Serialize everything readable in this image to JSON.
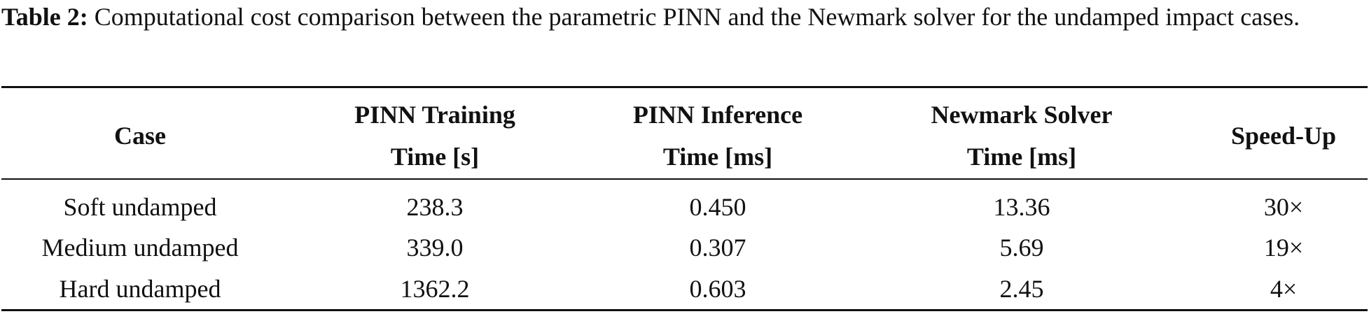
{
  "caption": {
    "label": "Table 2:",
    "text": "Computational cost comparison between the parametric PINN and the Newmark solver for the undamped impact cases."
  },
  "table": {
    "header": [
      [
        "Case"
      ],
      [
        "PINN Training",
        "Time [s]"
      ],
      [
        "PINN Inference",
        "Time [ms]"
      ],
      [
        "Newmark Solver",
        "Time [ms]"
      ],
      [
        "Speed-Up"
      ]
    ],
    "rows": [
      [
        "Soft undamped",
        "238.3",
        "0.450",
        "13.36",
        "30×"
      ],
      [
        "Medium undamped",
        "339.0",
        "0.307",
        "5.69",
        "19×"
      ],
      [
        "Hard undamped",
        "1362.2",
        "0.603",
        "2.45",
        "4×"
      ]
    ]
  }
}
